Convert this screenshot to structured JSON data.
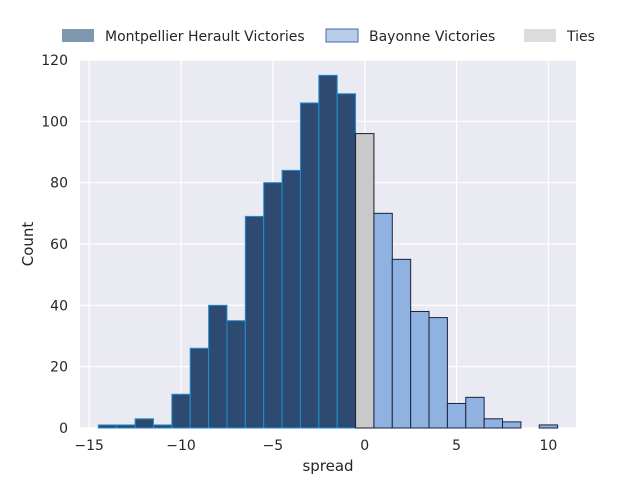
{
  "chart_data": {
    "type": "bar",
    "title": "",
    "xlabel": "spread",
    "ylabel": "Count",
    "xlim": [
      -15.5,
      11.5
    ],
    "ylim": [
      0,
      120
    ],
    "xticks": [
      -15,
      -10,
      -5,
      0,
      5,
      10
    ],
    "yticks": [
      0,
      20,
      40,
      60,
      80,
      100,
      120
    ],
    "grid": true,
    "bin_width": 1,
    "legend": {
      "placement": "top",
      "entries": [
        {
          "name": "Montpellier Herault Victories",
          "color": "#7f98b0"
        },
        {
          "name": "Bayonne Victories",
          "color": "#b8cdea"
        },
        {
          "name": "Ties",
          "color": "#dcdcdc"
        }
      ]
    },
    "series": [
      {
        "name": "Montpellier Herault Victories",
        "fill": "#2e4a70",
        "stroke": "#1f8fd4",
        "bins": [
          {
            "start": -14.5,
            "count": 1
          },
          {
            "start": -13.5,
            "count": 1
          },
          {
            "start": -12.5,
            "count": 3
          },
          {
            "start": -11.5,
            "count": 1
          },
          {
            "start": -10.5,
            "count": 11
          },
          {
            "start": -9.5,
            "count": 26
          },
          {
            "start": -8.5,
            "count": 40
          },
          {
            "start": -7.5,
            "count": 35
          },
          {
            "start": -6.5,
            "count": 69
          },
          {
            "start": -5.5,
            "count": 80
          },
          {
            "start": -4.5,
            "count": 84
          },
          {
            "start": -3.5,
            "count": 106
          },
          {
            "start": -2.5,
            "count": 115
          },
          {
            "start": -1.5,
            "count": 109
          }
        ]
      },
      {
        "name": "Ties",
        "fill": "#c9c9c9",
        "stroke": "#1a1a2e",
        "bins": [
          {
            "start": -0.5,
            "count": 96
          }
        ]
      },
      {
        "name": "Bayonne Victories",
        "fill": "#8fb2e0",
        "stroke": "#1a2240",
        "bins": [
          {
            "start": 0.5,
            "count": 70
          },
          {
            "start": 1.5,
            "count": 55
          },
          {
            "start": 2.5,
            "count": 38
          },
          {
            "start": 3.5,
            "count": 36
          },
          {
            "start": 4.5,
            "count": 8
          },
          {
            "start": 5.5,
            "count": 10
          },
          {
            "start": 6.5,
            "count": 3
          },
          {
            "start": 7.5,
            "count": 2
          },
          {
            "start": 8.5,
            "count": 0
          },
          {
            "start": 9.5,
            "count": 1
          }
        ]
      }
    ]
  }
}
